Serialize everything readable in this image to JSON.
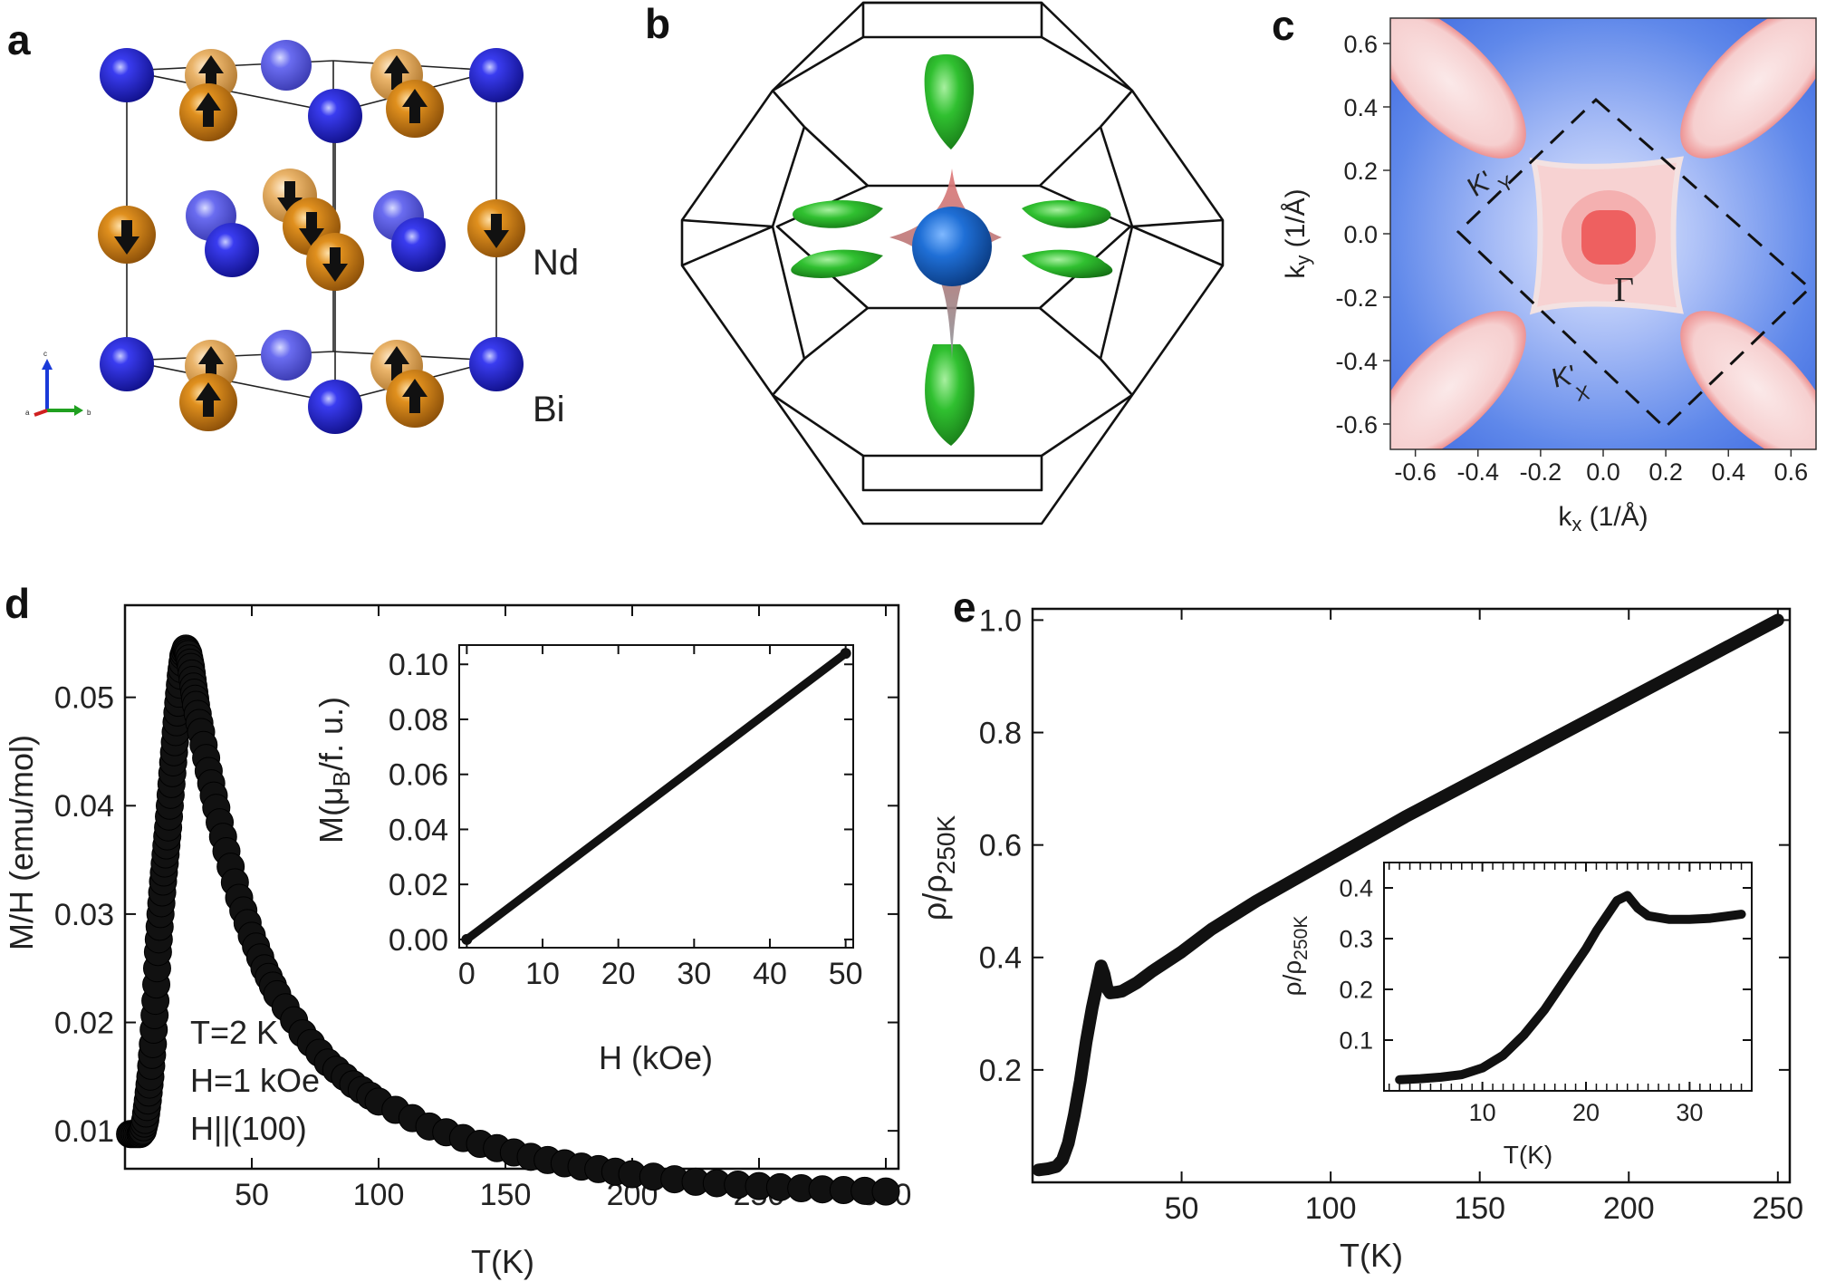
{
  "panels": {
    "a": {
      "label": "a",
      "atom_labels": [
        "Nd",
        "Bi"
      ]
    },
    "b": {
      "label": "b"
    },
    "c": {
      "label": "c",
      "xlabel_base": "k",
      "xlabel_sub": "x",
      "xlabel_tail": " (1/Å)",
      "ylabel_base": "k",
      "ylabel_sub": "y",
      "ylabel_tail": " (1/Å)",
      "x_ticks": [
        "-0.6",
        "-0.4",
        "-0.2",
        "0.0",
        "0.2",
        "0.4",
        "0.6"
      ],
      "y_ticks": [
        "0.6",
        "0.4",
        "0.2",
        "0.0",
        "-0.2",
        "-0.4",
        "-0.6"
      ],
      "annotations": {
        "gamma": "Γ",
        "ky": "K'",
        "ky_sub": "Y",
        "kx": "K'",
        "kx_sub": "X"
      }
    },
    "d": {
      "label": "d",
      "annotation_lines": [
        "T=2 K",
        "H=1 kOe",
        "H||(100)"
      ]
    },
    "e": {
      "label": "e"
    }
  },
  "chart_data": [
    {
      "id": "d-main",
      "type": "scatter",
      "xlabel": "T(K)",
      "ylabel": "M/H (emu/mol)",
      "xlim": [
        0,
        305
      ],
      "ylim": [
        0.0065,
        0.0585
      ],
      "x_ticks": [
        50,
        100,
        150,
        200,
        250,
        300
      ],
      "y_ticks": [
        0.01,
        0.02,
        0.03,
        0.04,
        0.05
      ],
      "y_tick_labels": [
        "0.01",
        "0.02",
        "0.03",
        "0.04",
        "0.05"
      ],
      "series": [
        {
          "x": [
            2,
            4,
            6,
            7,
            8,
            9,
            10,
            11,
            12,
            13,
            14,
            15,
            16,
            17,
            18,
            19,
            20,
            21,
            22,
            23,
            24,
            25,
            26,
            27,
            28,
            30,
            33,
            36,
            40,
            45,
            50,
            55,
            60,
            70,
            80,
            90,
            100,
            120,
            140,
            160,
            180,
            200,
            225,
            250,
            275,
            300
          ],
          "y": [
            0.0097,
            0.0097,
            0.0097,
            0.01,
            0.011,
            0.0128,
            0.015,
            0.018,
            0.022,
            0.0265,
            0.03,
            0.033,
            0.0355,
            0.038,
            0.041,
            0.044,
            0.0468,
            0.0495,
            0.052,
            0.0538,
            0.0545,
            0.054,
            0.0528,
            0.051,
            0.0493,
            0.0468,
            0.0432,
            0.0398,
            0.0358,
            0.0315,
            0.028,
            0.025,
            0.0226,
            0.019,
            0.0163,
            0.0143,
            0.0127,
            0.0104,
            0.0088,
            0.0076,
            0.0067,
            0.006,
            0.0053,
            0.0049,
            0.0046,
            0.0044
          ]
        }
      ]
    },
    {
      "id": "d-inset",
      "type": "line",
      "xlabel": "H (kOe)",
      "ylabel_base": "M(μ",
      "ylabel_sub": "B",
      "ylabel_tail": "/f. u.)",
      "xlim": [
        -1,
        51
      ],
      "ylim": [
        -0.003,
        0.107
      ],
      "x_ticks": [
        0,
        10,
        20,
        30,
        40,
        50
      ],
      "y_ticks": [
        0,
        0.02,
        0.04,
        0.06,
        0.08,
        0.1
      ],
      "y_tick_labels": [
        "0.00",
        "0.02",
        "0.04",
        "0.06",
        "0.08",
        "0.10"
      ],
      "series": [
        {
          "x": [
            0,
            50
          ],
          "y": [
            0.0,
            0.104
          ]
        }
      ]
    },
    {
      "id": "e-main",
      "type": "line",
      "xlabel": "T(K)",
      "ylabel_base": "ρ/ρ",
      "ylabel_sub": "250K",
      "xlim": [
        0,
        254
      ],
      "ylim": [
        0.0,
        1.02
      ],
      "x_ticks": [
        50,
        100,
        150,
        200,
        250
      ],
      "y_ticks": [
        0.2,
        0.4,
        0.6,
        0.8,
        1.0
      ],
      "y_tick_labels": [
        "0.2",
        "0.4",
        "0.6",
        "0.8",
        "1.0"
      ],
      "series": [
        {
          "x": [
            2,
            5,
            8,
            10,
            12,
            14,
            16,
            18,
            20,
            22,
            23,
            24,
            25,
            26,
            28,
            30,
            35,
            40,
            50,
            60,
            75,
            100,
            125,
            150,
            175,
            200,
            225,
            250
          ],
          "y": [
            0.022,
            0.024,
            0.028,
            0.04,
            0.07,
            0.12,
            0.18,
            0.25,
            0.31,
            0.36,
            0.385,
            0.37,
            0.345,
            0.337,
            0.338,
            0.34,
            0.355,
            0.375,
            0.41,
            0.45,
            0.5,
            0.575,
            0.65,
            0.72,
            0.79,
            0.86,
            0.93,
            1.0
          ]
        }
      ]
    },
    {
      "id": "e-inset",
      "type": "line",
      "xlabel": "T(K)",
      "ylabel_base": "ρ/ρ",
      "ylabel_sub": "250K",
      "xlim": [
        0.5,
        36
      ],
      "ylim": [
        0.0,
        0.45
      ],
      "x_ticks": [
        10,
        20,
        30
      ],
      "y_ticks": [
        0.1,
        0.2,
        0.3,
        0.4
      ],
      "y_tick_labels": [
        "0.1",
        "0.2",
        "0.3",
        "0.4"
      ],
      "series": [
        {
          "x": [
            2,
            4,
            6,
            8,
            10,
            12,
            14,
            16,
            18,
            20,
            21,
            22,
            23,
            24,
            25,
            26,
            28,
            30,
            32,
            35
          ],
          "y": [
            0.022,
            0.024,
            0.027,
            0.032,
            0.045,
            0.07,
            0.11,
            0.16,
            0.22,
            0.28,
            0.315,
            0.345,
            0.375,
            0.385,
            0.36,
            0.345,
            0.338,
            0.338,
            0.34,
            0.348
          ]
        }
      ]
    }
  ]
}
